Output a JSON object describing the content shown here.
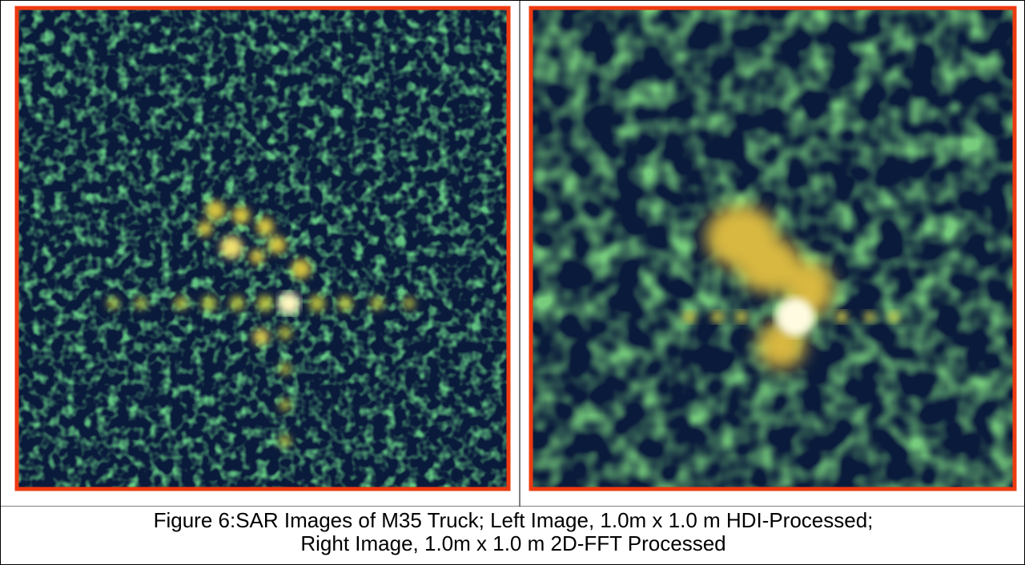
{
  "caption": {
    "line1": "Figure 6:SAR Images of M35 Truck; Left Image, 1.0m x 1.0 m HDI-Processed;",
    "line2": "Right Image, 1.0m x 1.0 m 2D-FFT Processed"
  }
}
